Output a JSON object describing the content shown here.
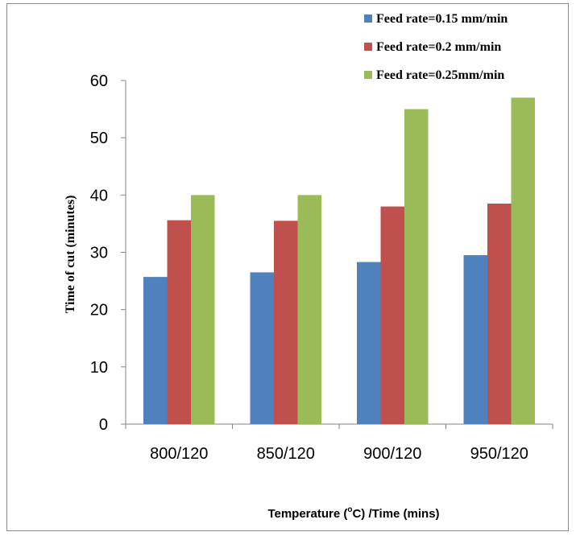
{
  "chart_data": {
    "type": "bar",
    "categories": [
      "800/120",
      "850/120",
      "900/120",
      "950/120"
    ],
    "series": [
      {
        "name": "Feed rate=0.15 mm/min",
        "color": "#4F81BD",
        "values": [
          25.7,
          26.5,
          28.3,
          29.5
        ]
      },
      {
        "name": "Feed rate=0.2 mm/min",
        "color": "#C0504D",
        "values": [
          35.6,
          35.5,
          38.0,
          38.5
        ]
      },
      {
        "name": "Feed rate=0.25mm/min",
        "color": "#9BBB59",
        "values": [
          40.0,
          40.0,
          55.0,
          57.0
        ]
      }
    ],
    "ylim": [
      0,
      60
    ],
    "yticks": [
      0,
      10,
      20,
      30,
      40,
      50,
      60
    ],
    "ylabel": "Time of cut (minutes)",
    "xlabel_main": "Temperature (",
    "xlabel_sup": "o",
    "xlabel_rest": "C) /Time (mins)",
    "grid": false,
    "legend_position": "top-right"
  }
}
